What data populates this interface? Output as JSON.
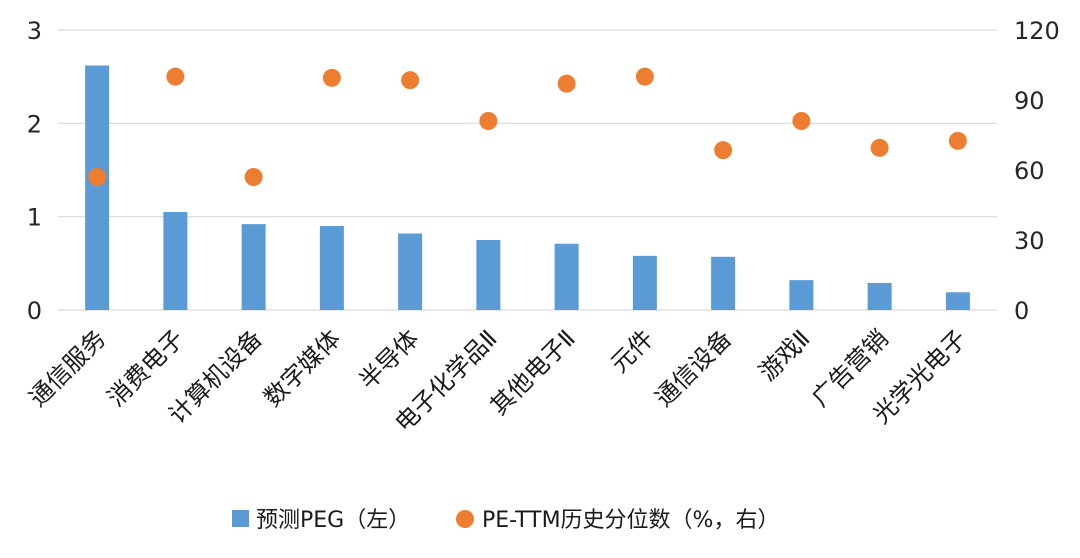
{
  "chart_data": {
    "type": "bar",
    "categories": [
      "通信服务",
      "消费电子",
      "计算机设备",
      "数字媒体",
      "半导体",
      "电子化学品Ⅱ",
      "其他电子Ⅱ",
      "元件",
      "通信设备",
      "游戏Ⅱ",
      "广告营销",
      "光学光电子"
    ],
    "series": [
      {
        "name": "预测PEG（左）",
        "type": "bar",
        "axis": "left",
        "color": "#5b9bd5",
        "values": [
          2.62,
          1.05,
          0.92,
          0.9,
          0.82,
          0.75,
          0.71,
          0.58,
          0.57,
          0.32,
          0.29,
          0.19
        ]
      },
      {
        "name": "PE-TTM历史分位数（%，右）",
        "type": "scatter",
        "axis": "right",
        "color": "#ed7d31",
        "values": [
          57,
          100,
          57,
          99.5,
          98.5,
          81,
          97,
          100,
          68.5,
          81,
          69.5,
          72.5
        ]
      }
    ],
    "y_left": {
      "min": 0,
      "max": 3,
      "ticks": [
        "0",
        "1",
        "2",
        "3"
      ]
    },
    "y_right": {
      "min": 0,
      "max": 120,
      "ticks": [
        "0",
        "30",
        "60",
        "90",
        "120"
      ]
    },
    "grid": true,
    "legend_position": "bottom"
  }
}
